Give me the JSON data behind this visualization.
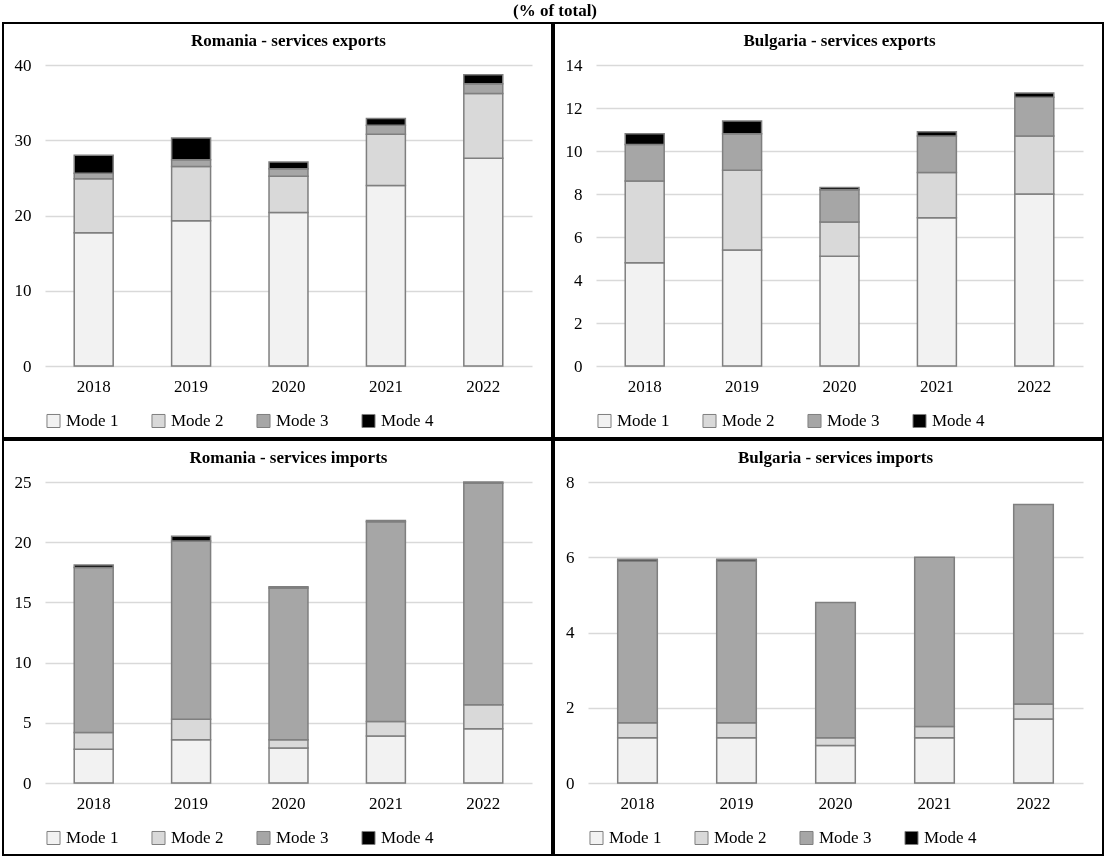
{
  "chart_data": [
    {
      "type": "bar",
      "title": "Romania - services exports",
      "annotations": [
        "(% of total)"
      ],
      "categories": [
        "2018",
        "2019",
        "2020",
        "2021",
        "2022"
      ],
      "stacked": true,
      "grid": "y",
      "legend": "bottom",
      "ylim": [
        0,
        40
      ],
      "yticks": [
        0,
        10,
        20,
        30,
        40
      ],
      "series": [
        {
          "name": "Mode 1",
          "color": "#f2f2f2",
          "values": [
            17.7,
            19.3,
            20.4,
            24.0,
            27.6
          ]
        },
        {
          "name": "Mode 2",
          "color": "#d9d9d9",
          "values": [
            7.2,
            7.2,
            4.8,
            6.8,
            8.6
          ]
        },
        {
          "name": "Mode 3",
          "color": "#a6a6a6",
          "values": [
            0.7,
            0.9,
            1.0,
            1.2,
            1.3
          ]
        },
        {
          "name": "Mode 4",
          "color": "#000000",
          "values": [
            2.4,
            2.9,
            0.9,
            0.9,
            1.2
          ]
        }
      ]
    },
    {
      "type": "bar",
      "title": "Bulgaria - services exports",
      "categories": [
        "2018",
        "2019",
        "2020",
        "2021",
        "2022"
      ],
      "stacked": true,
      "grid": "y",
      "legend": "bottom",
      "ylim": [
        0,
        14
      ],
      "yticks": [
        0,
        2,
        4,
        6,
        8,
        10,
        12,
        14
      ],
      "series": [
        {
          "name": "Mode 1",
          "color": "#f2f2f2",
          "values": [
            4.8,
            5.4,
            5.1,
            6.9,
            8.0
          ]
        },
        {
          "name": "Mode 2",
          "color": "#d9d9d9",
          "values": [
            3.8,
            3.7,
            1.6,
            2.1,
            2.7
          ]
        },
        {
          "name": "Mode 3",
          "color": "#a6a6a6",
          "values": [
            1.7,
            1.7,
            1.5,
            1.7,
            1.8
          ]
        },
        {
          "name": "Mode 4",
          "color": "#000000",
          "values": [
            0.5,
            0.6,
            0.1,
            0.2,
            0.2
          ]
        }
      ]
    },
    {
      "type": "bar",
      "title": "Romania - services imports",
      "categories": [
        "2018",
        "2019",
        "2020",
        "2021",
        "2022"
      ],
      "stacked": true,
      "grid": "y",
      "legend": "bottom",
      "ylim": [
        0,
        25
      ],
      "yticks": [
        0,
        5,
        10,
        15,
        20,
        25
      ],
      "series": [
        {
          "name": "Mode 1",
          "color": "#f2f2f2",
          "values": [
            2.8,
            3.6,
            2.9,
            3.9,
            4.5
          ]
        },
        {
          "name": "Mode 2",
          "color": "#d9d9d9",
          "values": [
            1.4,
            1.7,
            0.7,
            1.2,
            2.0
          ]
        },
        {
          "name": "Mode 3",
          "color": "#a6a6a6",
          "values": [
            13.7,
            14.8,
            12.6,
            16.6,
            18.4
          ]
        },
        {
          "name": "Mode 4",
          "color": "#000000",
          "values": [
            0.2,
            0.4,
            0.1,
            0.1,
            0.1
          ]
        }
      ]
    },
    {
      "type": "bar",
      "title": "Bulgaria - services imports",
      "categories": [
        "2018",
        "2019",
        "2020",
        "2021",
        "2022"
      ],
      "stacked": true,
      "grid": "y",
      "legend": "bottom",
      "ylim": [
        0,
        8
      ],
      "yticks": [
        0,
        2,
        4,
        6,
        8
      ],
      "series": [
        {
          "name": "Mode 1",
          "color": "#f2f2f2",
          "values": [
            1.2,
            1.2,
            1.0,
            1.2,
            1.7
          ]
        },
        {
          "name": "Mode 2",
          "color": "#d9d9d9",
          "values": [
            0.4,
            0.4,
            0.2,
            0.3,
            0.4
          ]
        },
        {
          "name": "Mode 3",
          "color": "#a6a6a6",
          "values": [
            4.3,
            4.3,
            3.6,
            4.5,
            5.3
          ]
        },
        {
          "name": "Mode 4",
          "color": "#000000",
          "values": [
            0.05,
            0.05,
            null,
            null,
            null
          ]
        }
      ]
    }
  ]
}
